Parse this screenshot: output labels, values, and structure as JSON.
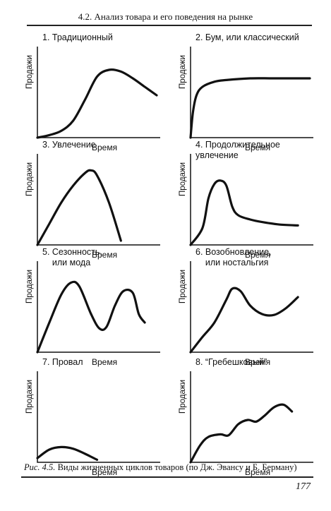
{
  "header": {
    "title": "4.2. Анализ товара и его поведения на рынке"
  },
  "axis_labels": {
    "y": "Продажи",
    "x": "Время"
  },
  "panels": [
    {
      "title": "1. Традиционный"
    },
    {
      "title": "2. Бум, или классический"
    },
    {
      "title": "3. Увлечение"
    },
    {
      "title": "4. Продолжительное\nувлечение"
    },
    {
      "title": "5. Сезонность,\n    или мода"
    },
    {
      "title": "6. Возобновление,\n    или ностальгия"
    },
    {
      "title": "7. Провал"
    },
    {
      "title": "8. “Гребешковый”"
    }
  ],
  "caption": {
    "fig": "Рис. 4.5.",
    "text": "Виды жизненных циклов товаров (по Дж. Эвансу и Б. Берману)"
  },
  "page_number": "177",
  "chart_data": [
    {
      "type": "line",
      "title": "1. Традиционный",
      "xlabel": "Время",
      "ylabel": "Продажи",
      "x": [
        0,
        0.1,
        0.2,
        0.3,
        0.4,
        0.5,
        0.6,
        0.7,
        0.8,
        0.9,
        1.0
      ],
      "y": [
        0,
        0.03,
        0.08,
        0.2,
        0.45,
        0.72,
        0.8,
        0.78,
        0.7,
        0.6,
        0.5
      ]
    },
    {
      "type": "line",
      "title": "2. Бум, или классический",
      "xlabel": "Время",
      "ylabel": "Продажи",
      "x": [
        0,
        0.02,
        0.05,
        0.1,
        0.2,
        0.3,
        0.5,
        0.7,
        1.0
      ],
      "y": [
        0,
        0.3,
        0.5,
        0.6,
        0.66,
        0.68,
        0.7,
        0.7,
        0.7
      ]
    },
    {
      "type": "line",
      "title": "3. Увлечение",
      "xlabel": "Время",
      "ylabel": "Продажи",
      "x": [
        0,
        0.1,
        0.2,
        0.3,
        0.4,
        0.45,
        0.5,
        0.6,
        0.7
      ],
      "y": [
        0,
        0.25,
        0.5,
        0.7,
        0.85,
        0.88,
        0.82,
        0.5,
        0.05
      ]
    },
    {
      "type": "line",
      "title": "4. Продолжительное увлечение",
      "xlabel": "Время",
      "ylabel": "Продажи",
      "x": [
        0,
        0.1,
        0.15,
        0.2,
        0.25,
        0.3,
        0.35,
        0.4,
        0.5,
        0.6,
        0.75,
        0.9
      ],
      "y": [
        0,
        0.2,
        0.55,
        0.72,
        0.76,
        0.7,
        0.45,
        0.35,
        0.3,
        0.27,
        0.24,
        0.23
      ]
    },
    {
      "type": "line",
      "title": "5. Сезонность, или мода",
      "xlabel": "Время",
      "ylabel": "Продажи",
      "x": [
        0,
        0.1,
        0.2,
        0.28,
        0.35,
        0.45,
        0.52,
        0.58,
        0.65,
        0.72,
        0.8,
        0.85,
        0.9
      ],
      "y": [
        0,
        0.35,
        0.68,
        0.82,
        0.78,
        0.45,
        0.28,
        0.3,
        0.55,
        0.72,
        0.7,
        0.45,
        0.35
      ]
    },
    {
      "type": "line",
      "title": "6. Возобновление, или ностальгия",
      "xlabel": "Время",
      "ylabel": "Продажи",
      "x": [
        0,
        0.1,
        0.2,
        0.3,
        0.35,
        0.42,
        0.5,
        0.6,
        0.7,
        0.8,
        0.9
      ],
      "y": [
        0,
        0.18,
        0.35,
        0.62,
        0.75,
        0.72,
        0.55,
        0.45,
        0.44,
        0.52,
        0.65
      ]
    },
    {
      "type": "line",
      "title": "7. Провал",
      "xlabel": "Время",
      "ylabel": "Продажи",
      "x": [
        0,
        0.1,
        0.2,
        0.3,
        0.4,
        0.5
      ],
      "y": [
        0.05,
        0.15,
        0.18,
        0.16,
        0.1,
        0.03
      ]
    },
    {
      "type": "line",
      "title": "8. “Гребешковый”",
      "xlabel": "Время",
      "ylabel": "Продажи",
      "x": [
        0,
        0.08,
        0.15,
        0.25,
        0.32,
        0.4,
        0.48,
        0.55,
        0.62,
        0.7,
        0.78,
        0.85
      ],
      "y": [
        0,
        0.2,
        0.3,
        0.33,
        0.32,
        0.45,
        0.5,
        0.48,
        0.55,
        0.65,
        0.68,
        0.6
      ]
    }
  ]
}
